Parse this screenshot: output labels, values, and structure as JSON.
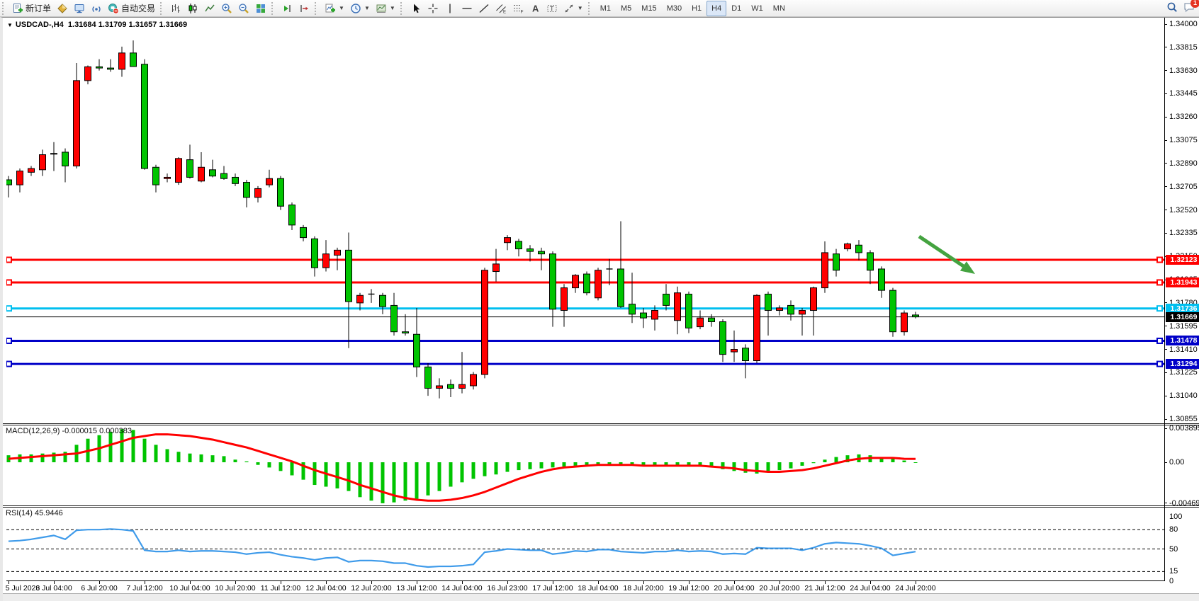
{
  "toolbar": {
    "groups": [
      {
        "name": "trade-group",
        "items": [
          {
            "name": "new-order-button",
            "icon": "doc-plus-icon",
            "label": "新订单"
          },
          {
            "name": "market-watch-button",
            "icon": "gold-diamond-icon"
          },
          {
            "name": "chart-window-button",
            "icon": "monitor-icon"
          },
          {
            "name": "signals-button",
            "icon": "signal-icon"
          },
          {
            "name": "auto-trading-button",
            "icon": "autotrade-icon",
            "label": "自动交易"
          }
        ]
      },
      {
        "name": "chart-type-group",
        "items": [
          {
            "name": "bar-chart-button",
            "icon": "chart-bars-icon"
          },
          {
            "name": "candle-chart-button",
            "icon": "chart-candles-icon"
          },
          {
            "name": "line-chart-button",
            "icon": "chart-line-icon"
          },
          {
            "name": "zoom-in-button",
            "icon": "zoom-in-icon"
          },
          {
            "name": "zoom-out-button",
            "icon": "zoom-out-icon"
          },
          {
            "name": "tile-windows-button",
            "icon": "tiles-icon"
          }
        ]
      },
      {
        "name": "scroll-group",
        "items": [
          {
            "name": "auto-scroll-button",
            "icon": "autoscroll-icon"
          },
          {
            "name": "chart-shift-button",
            "icon": "chart-shift-icon"
          }
        ]
      },
      {
        "name": "insert-group",
        "items": [
          {
            "name": "indicators-button",
            "icon": "indicator-plus-icon",
            "caret": true
          },
          {
            "name": "periods-button",
            "icon": "clock-icon",
            "caret": true
          },
          {
            "name": "templates-button",
            "icon": "template-icon",
            "caret": true
          }
        ]
      },
      {
        "name": "objects-group",
        "items": [
          {
            "name": "cursor-button",
            "icon": "cursor-icon"
          },
          {
            "name": "crosshair-button",
            "icon": "crosshair-icon"
          },
          {
            "name": "vertical-line-button",
            "icon": "vline-icon"
          },
          {
            "name": "horizontal-line-button",
            "icon": "hline-icon"
          },
          {
            "name": "trendline-button",
            "icon": "tline-icon"
          },
          {
            "name": "channel-button",
            "icon": "channel-icon"
          },
          {
            "name": "fibonacci-button",
            "icon": "fibo-icon"
          },
          {
            "name": "text-button",
            "icon": "text-icon"
          },
          {
            "name": "label-button",
            "icon": "label-icon"
          },
          {
            "name": "arrows-button",
            "icon": "arrows-icon",
            "caret": true
          }
        ]
      }
    ],
    "timeframes": [
      "M1",
      "M5",
      "M15",
      "M30",
      "H1",
      "H4",
      "D1",
      "W1",
      "MN"
    ],
    "active_timeframe": "H4",
    "chat_badge": "1"
  },
  "chart": {
    "dropdown_glyph": "▼",
    "symbol_period": "USDCAD-,H4",
    "open": "1.31684",
    "high": "1.31709",
    "low": "1.31657",
    "close": "1.31669"
  },
  "macd": {
    "label": "MACD(12,26,9)",
    "value_main": "-0.000015",
    "value_signal": "0.000383",
    "axis_labels": [
      {
        "text": "0.003895",
        "value": 0.003895
      },
      {
        "text": "0.00",
        "value": 0
      },
      {
        "text": "-0.004699",
        "value": -0.004699
      }
    ]
  },
  "rsi": {
    "label": "RSI(14)",
    "value": "45.9446",
    "axis_labels": [
      {
        "text": "100",
        "value": 100
      },
      {
        "text": "80",
        "value": 80
      },
      {
        "text": "50",
        "value": 50
      },
      {
        "text": "15",
        "value": 15
      },
      {
        "text": "0",
        "value": 0
      }
    ],
    "levels": [
      80,
      50,
      15
    ]
  },
  "colors": {
    "up": "#FF0000",
    "down": "#00C400",
    "doji": "#000000",
    "wick": "#000000",
    "macd_hist": "#00C400",
    "macd_signal": "#FF0000",
    "rsi_line": "#3F9BEA",
    "tag_current_bg": "#000000",
    "arrow": "#44A340"
  },
  "chart_data": {
    "type": "candlestick",
    "symbol": "USDCAD",
    "timeframe": "H4",
    "price_axis_ticks": [
      "1.34000",
      "1.33815",
      "1.33630",
      "1.33445",
      "1.33260",
      "1.33075",
      "1.32890",
      "1.32705",
      "1.32520",
      "1.32335",
      "1.32150",
      "1.31965",
      "1.31780",
      "1.31595",
      "1.31410",
      "1.31225",
      "1.31040",
      "1.30855"
    ],
    "x_labels": [
      "5 Jul 2023",
      "6 Jul 04:00",
      "6 Jul 20:00",
      "7 Jul 12:00",
      "10 Jul 04:00",
      "10 Jul 20:00",
      "11 Jul 12:00",
      "12 Jul 04:00",
      "12 Jul 20:00",
      "13 Jul 12:00",
      "14 Jul 04:00",
      "16 Jul 23:00",
      "17 Jul 12:00",
      "18 Jul 04:00",
      "18 Jul 20:00",
      "19 Jul 12:00",
      "20 Jul 04:00",
      "20 Jul 20:00",
      "21 Jul 12:00",
      "24 Jul 04:00",
      "24 Jul 20:00"
    ],
    "candles": [
      [
        1.3276,
        1.3279,
        1.3262,
        1.3272
      ],
      [
        1.3272,
        1.3285,
        1.3266,
        1.3283
      ],
      [
        1.3282,
        1.3287,
        1.3279,
        1.3285
      ],
      [
        1.3284,
        1.33,
        1.3279,
        1.3296
      ],
      [
        1.3297,
        1.3306,
        1.3283,
        1.32965
      ],
      [
        1.3298,
        1.3301,
        1.3274,
        1.3287
      ],
      [
        1.3287,
        1.3369,
        1.3285,
        1.3355
      ],
      [
        1.3355,
        1.3367,
        1.3352,
        1.3366
      ],
      [
        1.3366,
        1.3372,
        1.3363,
        1.3365
      ],
      [
        1.3365,
        1.3372,
        1.3362,
        1.3364
      ],
      [
        1.3364,
        1.3382,
        1.3358,
        1.3377
      ],
      [
        1.3377,
        1.3387,
        1.3366,
        1.33662
      ],
      [
        1.3368,
        1.3372,
        1.3284,
        1.3285
      ],
      [
        1.3286,
        1.3288,
        1.3266,
        1.3272
      ],
      [
        1.3277,
        1.3281,
        1.3274,
        1.3278
      ],
      [
        1.3274,
        1.3294,
        1.3272,
        1.3293
      ],
      [
        1.3292,
        1.3304,
        1.3277,
        1.3278
      ],
      [
        1.3275,
        1.3298,
        1.3274,
        1.3286
      ],
      [
        1.3284,
        1.3292,
        1.3278,
        1.3279
      ],
      [
        1.3281,
        1.3287,
        1.3276,
        1.3277
      ],
      [
        1.3278,
        1.3281,
        1.3271,
        1.3273
      ],
      [
        1.3274,
        1.3276,
        1.3254,
        1.3262
      ],
      [
        1.3262,
        1.3271,
        1.3258,
        1.3269
      ],
      [
        1.3272,
        1.3284,
        1.327,
        1.3277
      ],
      [
        1.3277,
        1.3279,
        1.3252,
        1.3255
      ],
      [
        1.3256,
        1.3258,
        1.3236,
        1.324
      ],
      [
        1.3238,
        1.324,
        1.3227,
        1.323
      ],
      [
        1.3229,
        1.3231,
        1.3199,
        1.3206
      ],
      [
        1.3206,
        1.3228,
        1.3203,
        1.3217
      ],
      [
        1.3216,
        1.3222,
        1.3204,
        1.322
      ],
      [
        1.322,
        1.3234,
        1.3142,
        1.3179
      ],
      [
        1.3178,
        1.3186,
        1.3172,
        1.3184
      ],
      [
        1.3185,
        1.3189,
        1.3178,
        1.3185
      ],
      [
        1.3184,
        1.3186,
        1.3169,
        1.3175
      ],
      [
        1.3176,
        1.3186,
        1.3152,
        1.3155
      ],
      [
        1.3155,
        1.3169,
        1.3152,
        1.3154
      ],
      [
        1.3153,
        1.3174,
        1.3119,
        1.3127
      ],
      [
        1.3127,
        1.313,
        1.3104,
        1.311
      ],
      [
        1.311,
        1.3118,
        1.3102,
        1.3112
      ],
      [
        1.3113,
        1.3117,
        1.3103,
        1.311
      ],
      [
        1.311,
        1.3139,
        1.3106,
        1.3113
      ],
      [
        1.3112,
        1.3123,
        1.3109,
        1.3121
      ],
      [
        1.3121,
        1.3206,
        1.3118,
        1.3204
      ],
      [
        1.3203,
        1.3221,
        1.3195,
        1.3209
      ],
      [
        1.3226,
        1.3232,
        1.322,
        1.323
      ],
      [
        1.3227,
        1.3229,
        1.3215,
        1.3221
      ],
      [
        1.3221,
        1.3224,
        1.3211,
        1.3219
      ],
      [
        1.3219,
        1.3222,
        1.3204,
        1.3217
      ],
      [
        1.3217,
        1.3219,
        1.3159,
        1.3173
      ],
      [
        1.3172,
        1.3193,
        1.3159,
        1.319
      ],
      [
        1.319,
        1.3201,
        1.3186,
        1.32
      ],
      [
        1.3201,
        1.3203,
        1.3184,
        1.3186
      ],
      [
        1.3182,
        1.3206,
        1.318,
        1.3204
      ],
      [
        1.3205,
        1.3213,
        1.3192,
        1.3205
      ],
      [
        1.3205,
        1.3243,
        1.3174,
        1.3175
      ],
      [
        1.3177,
        1.3202,
        1.3162,
        1.3169
      ],
      [
        1.317,
        1.3174,
        1.3158,
        1.3166
      ],
      [
        1.3165,
        1.3176,
        1.3156,
        1.3172
      ],
      [
        1.3185,
        1.3193,
        1.3172,
        1.3176
      ],
      [
        1.3164,
        1.3191,
        1.3153,
        1.3186
      ],
      [
        1.3185,
        1.3187,
        1.3154,
        1.3158
      ],
      [
        1.3159,
        1.3172,
        1.3157,
        1.3166
      ],
      [
        1.3166,
        1.3169,
        1.3159,
        1.3163
      ],
      [
        1.3163,
        1.3165,
        1.3131,
        1.3137
      ],
      [
        1.3139,
        1.3156,
        1.3131,
        1.3141
      ],
      [
        1.3142,
        1.3145,
        1.3118,
        1.3132
      ],
      [
        1.3132,
        1.3185,
        1.313,
        1.3184
      ],
      [
        1.3185,
        1.3187,
        1.3152,
        1.3172
      ],
      [
        1.3172,
        1.3176,
        1.3168,
        1.3174
      ],
      [
        1.3176,
        1.318,
        1.3164,
        1.3169
      ],
      [
        1.3169,
        1.3174,
        1.3152,
        1.3172
      ],
      [
        1.3172,
        1.3191,
        1.3152,
        1.319
      ],
      [
        1.319,
        1.3227,
        1.3186,
        1.3218
      ],
      [
        1.3217,
        1.3221,
        1.3199,
        1.3204
      ],
      [
        1.3221,
        1.3226,
        1.3219,
        1.3225
      ],
      [
        1.3224,
        1.3228,
        1.3212,
        1.3218
      ],
      [
        1.3218,
        1.322,
        1.3193,
        1.3204
      ],
      [
        1.3205,
        1.3207,
        1.3182,
        1.3188
      ],
      [
        1.3188,
        1.319,
        1.3151,
        1.3155
      ],
      [
        1.3155,
        1.3172,
        1.3152,
        1.317
      ],
      [
        1.31684,
        1.31709,
        1.31657,
        1.31669
      ]
    ],
    "hlines": [
      {
        "price": 1.32123,
        "label": "1.32123",
        "color": "#FF0000",
        "width": 3
      },
      {
        "price": 1.31943,
        "label": "1.31943",
        "color": "#FF0000",
        "width": 3
      },
      {
        "price": 1.31736,
        "label": "1.31736",
        "color": "#00BFEF",
        "width": 3
      },
      {
        "price": 1.31478,
        "label": "1.31478",
        "color": "#0000C8",
        "width": 3
      },
      {
        "price": 1.31294,
        "label": "1.31294",
        "color": "#0000C8",
        "width": 3
      }
    ],
    "current_price": {
      "price": 1.31669,
      "label": "1.31669"
    },
    "macd": {
      "histogram": [
        0.0008,
        0.0009,
        0.0009,
        0.001,
        0.0011,
        0.0012,
        0.002,
        0.0027,
        0.0031,
        0.0035,
        0.0038,
        0.0037,
        0.0027,
        0.002,
        0.0015,
        0.0012,
        0.001,
        0.0009,
        0.0008,
        0.0007,
        0.0003,
        0.0001,
        -0.0003,
        -0.0006,
        -0.001,
        -0.0015,
        -0.002,
        -0.0026,
        -0.0028,
        -0.003,
        -0.0033,
        -0.004,
        -0.0044,
        -0.0047,
        -0.0046,
        -0.0044,
        -0.0042,
        -0.0038,
        -0.0033,
        -0.0028,
        -0.0023,
        -0.0019,
        -0.0016,
        -0.0014,
        -0.0011,
        -0.0009,
        -0.0008,
        -0.0007,
        -0.0006,
        -0.0005,
        -0.0004,
        -0.0003,
        -0.0002,
        -0.0002,
        -0.0003,
        -0.0004,
        -0.0004,
        -0.0004,
        -0.0003,
        -0.0003,
        -0.0004,
        -0.0005,
        -0.0006,
        -0.0008,
        -0.001,
        -0.0012,
        -0.0013,
        -0.0011,
        -0.0009,
        -0.0007,
        -0.0004,
        -0.0001,
        0.0003,
        0.0006,
        0.0008,
        0.0009,
        0.0008,
        0.0006,
        0.0004,
        0.0002,
        -1.5e-05
      ],
      "signal": [
        0.0004,
        0.0005,
        0.0006,
        0.0007,
        0.0008,
        0.0009,
        0.001,
        0.0013,
        0.0016,
        0.002,
        0.0024,
        0.0028,
        0.003,
        0.0032,
        0.0032,
        0.0031,
        0.003,
        0.0028,
        0.0026,
        0.0023,
        0.002,
        0.0017,
        0.0013,
        0.0009,
        0.0005,
        0.0001,
        -0.0004,
        -0.0009,
        -0.0013,
        -0.0017,
        -0.0021,
        -0.0026,
        -0.003,
        -0.0034,
        -0.0038,
        -0.0041,
        -0.0043,
        -0.0044,
        -0.0044,
        -0.0043,
        -0.0041,
        -0.0038,
        -0.0034,
        -0.0029,
        -0.0024,
        -0.0019,
        -0.0015,
        -0.0011,
        -0.0008,
        -0.0006,
        -0.0005,
        -0.0004,
        -0.0003,
        -0.0003,
        -0.0003,
        -0.0003,
        -0.0004,
        -0.0004,
        -0.0004,
        -0.0004,
        -0.0004,
        -0.0004,
        -0.0005,
        -0.0006,
        -0.0007,
        -0.0009,
        -0.001,
        -0.0011,
        -0.0011,
        -0.001,
        -0.0009,
        -0.0007,
        -0.0004,
        -0.0001,
        0.0002,
        0.0004,
        0.0005,
        0.0005,
        0.0005,
        0.0004,
        0.000383
      ]
    },
    "rsi_values": [
      62,
      63,
      65,
      68,
      71,
      65,
      79,
      80,
      80,
      81,
      80,
      78,
      48,
      46,
      46,
      48,
      46,
      47,
      47,
      46,
      45,
      42,
      44,
      45,
      41,
      38,
      36,
      33,
      36,
      37,
      30,
      32,
      32,
      31,
      28,
      28,
      24,
      22,
      23,
      23,
      24,
      26,
      45,
      47,
      50,
      49,
      48,
      48,
      42,
      44,
      47,
      46,
      49,
      49,
      46,
      45,
      44,
      46,
      46,
      48,
      46,
      47,
      46,
      42,
      43,
      42,
      52,
      51,
      51,
      51,
      48,
      52,
      58,
      60,
      59,
      58,
      55,
      51,
      40,
      43,
      45.94
    ],
    "annotation_arrow": {
      "from": [
        1288,
        306
      ],
      "to": [
        1367,
        359
      ]
    }
  }
}
